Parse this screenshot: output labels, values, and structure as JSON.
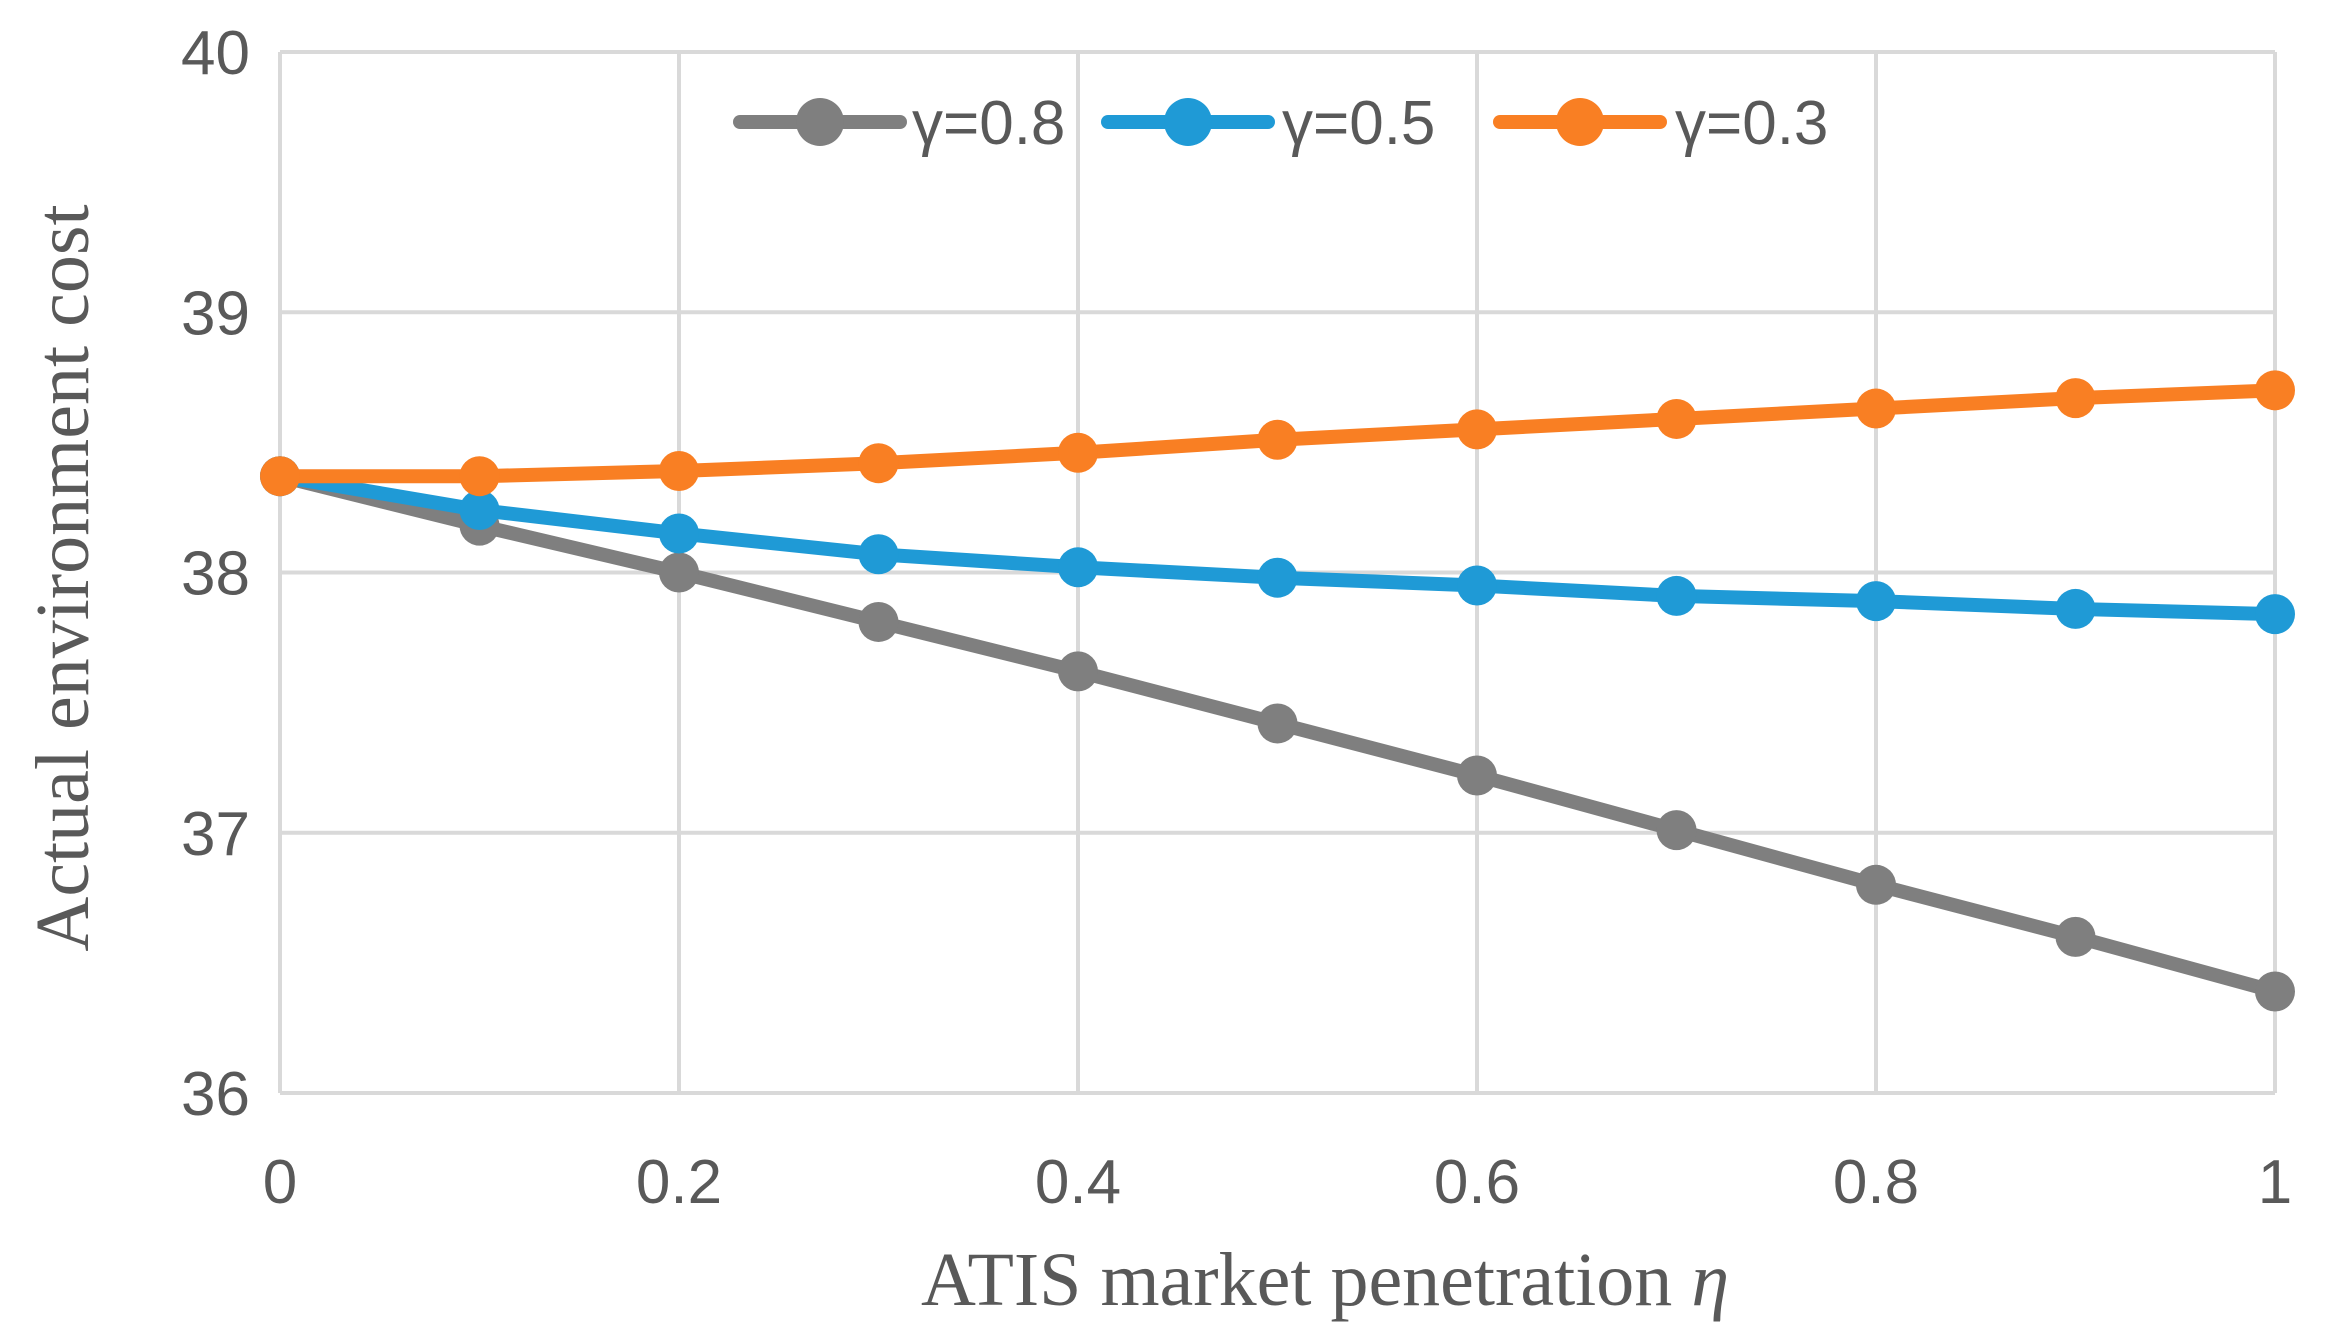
{
  "chart_data": {
    "type": "line",
    "title": "",
    "xlabel": "ATIS market penetration ",
    "xlabel_symbol": "η",
    "ylabel": "Actual environment cost",
    "x": [
      0,
      0.1,
      0.2,
      0.3,
      0.4,
      0.5,
      0.6,
      0.7,
      0.8,
      0.9,
      1
    ],
    "xlim": [
      0,
      1
    ],
    "ylim": [
      36,
      40
    ],
    "x_ticks": [
      0,
      0.2,
      0.4,
      0.6,
      0.8,
      1
    ],
    "x_tick_labels": [
      "0",
      "0.2",
      "0.4",
      "0.6",
      "0.8",
      "1"
    ],
    "y_ticks": [
      36,
      37,
      38,
      39,
      40
    ],
    "y_tick_labels": [
      "36",
      "37",
      "38",
      "39",
      "40"
    ],
    "grid": true,
    "legend_position": "top-center",
    "series": [
      {
        "name": "γ=0.8",
        "color": "#7f7f7f",
        "values": [
          38.37,
          38.18,
          38.0,
          37.81,
          37.62,
          37.42,
          37.22,
          37.01,
          36.8,
          36.6,
          36.39
        ]
      },
      {
        "name": "γ=0.5",
        "color": "#1f9ad6",
        "values": [
          38.37,
          38.24,
          38.15,
          38.07,
          38.02,
          37.98,
          37.95,
          37.91,
          37.89,
          37.86,
          37.84
        ]
      },
      {
        "name": "γ=0.3",
        "color": "#f97f23",
        "values": [
          38.37,
          38.37,
          38.39,
          38.42,
          38.46,
          38.51,
          38.55,
          38.59,
          38.63,
          38.67,
          38.7
        ]
      }
    ]
  }
}
